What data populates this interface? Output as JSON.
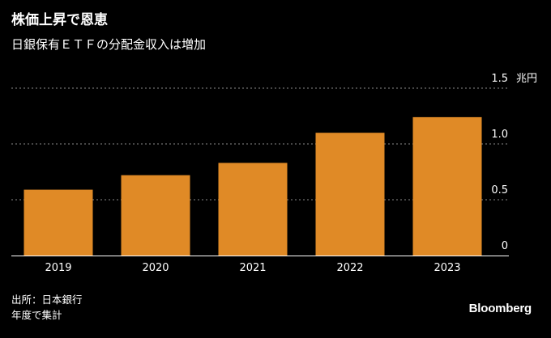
{
  "title": "株価上昇で恩恵",
  "subtitle": "日銀保有ＥＴＦの分配金収入は増加",
  "source_line": "出所：日本銀行",
  "note_line": "年度で集計",
  "brand": "Bloomberg",
  "colors": {
    "background": "#000000",
    "bar": "#e08a26",
    "gridline": "#8a8a8a",
    "text": "#ffffff"
  },
  "chart_data": {
    "type": "bar",
    "categories": [
      "2019",
      "2020",
      "2021",
      "2022",
      "2023"
    ],
    "values": [
      0.59,
      0.72,
      0.83,
      1.1,
      1.24
    ],
    "ylim": [
      0,
      1.5
    ],
    "y_ticks": [
      {
        "value": 0,
        "label": "0"
      },
      {
        "value": 0.5,
        "label": "0.5"
      },
      {
        "value": 1.0,
        "label": "1.0"
      },
      {
        "value": 1.5,
        "label": "1.5"
      }
    ],
    "y_unit": "兆円",
    "grid": true
  }
}
